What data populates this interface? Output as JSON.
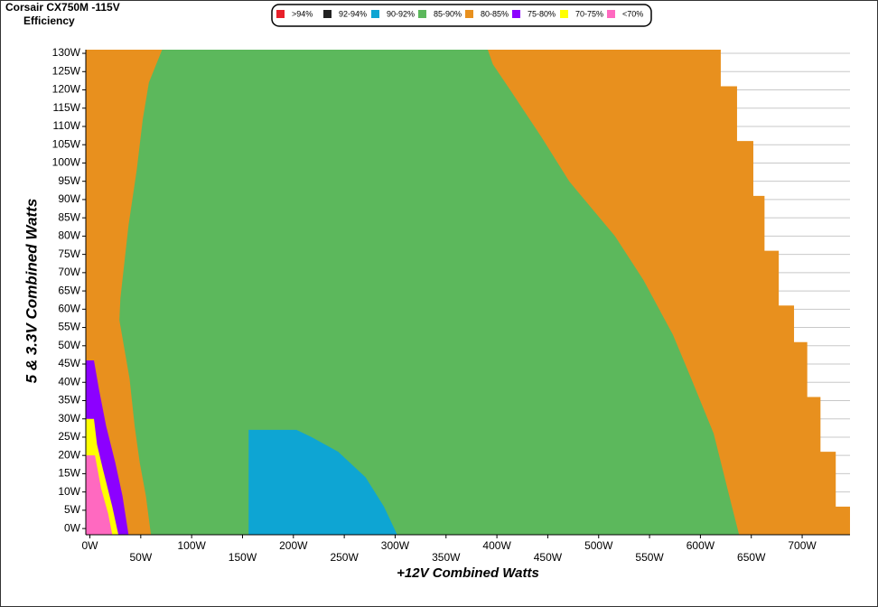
{
  "chart_data": {
    "type": "region",
    "title": "Corsair CX750M -115V",
    "subtitle": "Efficiency",
    "x_label": "+12V Combined Watts",
    "y_label": "5 & 3.3V Combined Watts",
    "xlim": [
      -4,
      747
    ],
    "ylim": [
      -1.7,
      131
    ],
    "grid": true,
    "xticks": [
      {
        "value": 0,
        "label": "0W"
      },
      {
        "value": 50,
        "label": "50W"
      },
      {
        "value": 100,
        "label": "100W"
      },
      {
        "value": 150,
        "label": "150W"
      },
      {
        "value": 200,
        "label": "200W"
      },
      {
        "value": 250,
        "label": "250W"
      },
      {
        "value": 300,
        "label": "300W"
      },
      {
        "value": 350,
        "label": "350W"
      },
      {
        "value": 400,
        "label": "400W"
      },
      {
        "value": 450,
        "label": "450W"
      },
      {
        "value": 500,
        "label": "500W"
      },
      {
        "value": 550,
        "label": "550W"
      },
      {
        "value": 600,
        "label": "600W"
      },
      {
        "value": 650,
        "label": "650W"
      },
      {
        "value": 700,
        "label": "700W"
      }
    ],
    "yticks": [
      {
        "value": 0,
        "label": "0W"
      },
      {
        "value": 5,
        "label": "5W"
      },
      {
        "value": 10,
        "label": "10W"
      },
      {
        "value": 15,
        "label": "15W"
      },
      {
        "value": 20,
        "label": "20W"
      },
      {
        "value": 25,
        "label": "25W"
      },
      {
        "value": 30,
        "label": "30W"
      },
      {
        "value": 35,
        "label": "35W"
      },
      {
        "value": 40,
        "label": "40W"
      },
      {
        "value": 45,
        "label": "45W"
      },
      {
        "value": 50,
        "label": "50W"
      },
      {
        "value": 55,
        "label": "55W"
      },
      {
        "value": 60,
        "label": "60W"
      },
      {
        "value": 65,
        "label": "65W"
      },
      {
        "value": 70,
        "label": "70W"
      },
      {
        "value": 75,
        "label": "75W"
      },
      {
        "value": 80,
        "label": "80W"
      },
      {
        "value": 85,
        "label": "85W"
      },
      {
        "value": 90,
        "label": "90W"
      },
      {
        "value": 95,
        "label": "95W"
      },
      {
        "value": 100,
        "label": "100W"
      },
      {
        "value": 105,
        "label": "105W"
      },
      {
        "value": 110,
        "label": "110W"
      },
      {
        "value": 115,
        "label": "115W"
      },
      {
        "value": 120,
        "label": "120W"
      },
      {
        "value": 125,
        "label": "125W"
      },
      {
        "value": 130,
        "label": "130W"
      }
    ],
    "series": [
      {
        "name": ">94%",
        "color": "#e8202a",
        "x": [],
        "y": []
      },
      {
        "name": "92-94%",
        "color": "#222222",
        "x": [],
        "y": []
      },
      {
        "name": "90-92%",
        "color": "#0ea5d3",
        "x": [
          156,
          156,
          203,
          218,
          244,
          271,
          289,
          302
        ],
        "y": [
          -1.7,
          27,
          27,
          25,
          21,
          14,
          6,
          -1.7
        ]
      },
      {
        "name": "85-90%",
        "color": "#5cb85c",
        "x": [
          71,
          58,
          52,
          46,
          38,
          30,
          29,
          39,
          44,
          49,
          55,
          60,
          638,
          631,
          613,
          591,
          573,
          544,
          516,
          471,
          444,
          413,
          396,
          391
        ],
        "y": [
          131,
          122,
          112,
          98,
          83,
          63,
          57,
          41,
          28,
          18,
          9,
          -1.7,
          -1.7,
          6,
          26,
          41,
          53,
          68,
          80,
          95,
          107,
          120,
          127,
          131
        ]
      },
      {
        "name": "80-85%",
        "color": "#e8901e",
        "x": [
          -4,
          620,
          620,
          636,
          636,
          652,
          652,
          663,
          663,
          677,
          677,
          692,
          692,
          705,
          705,
          718,
          718,
          733,
          733,
          747,
          747,
          -4
        ],
        "y": [
          131,
          131,
          121,
          121,
          106,
          106,
          91,
          91,
          76,
          76,
          61,
          61,
          51,
          51,
          36,
          36,
          21,
          21,
          6,
          6,
          -1.7,
          -1.7
        ]
      },
      {
        "name": "75-80%",
        "color": "#8c00ff",
        "x": [
          -4,
          4,
          9,
          16,
          25,
          32,
          38,
          -4
        ],
        "y": [
          46,
          46,
          38,
          28,
          18,
          9,
          -1.7,
          -1.7
        ]
      },
      {
        "name": "70-75%",
        "color": "#ffff00",
        "x": [
          -4,
          4,
          7,
          13,
          22,
          28,
          -4
        ],
        "y": [
          30,
          30,
          23,
          16,
          6,
          -1.7,
          -1.7
        ]
      },
      {
        "name": "<70%",
        "color": "#ff69c0",
        "x": [
          -4,
          5,
          11,
          18,
          22,
          -4
        ],
        "y": [
          20,
          20,
          11,
          4,
          -1.7,
          -1.7
        ]
      }
    ]
  }
}
